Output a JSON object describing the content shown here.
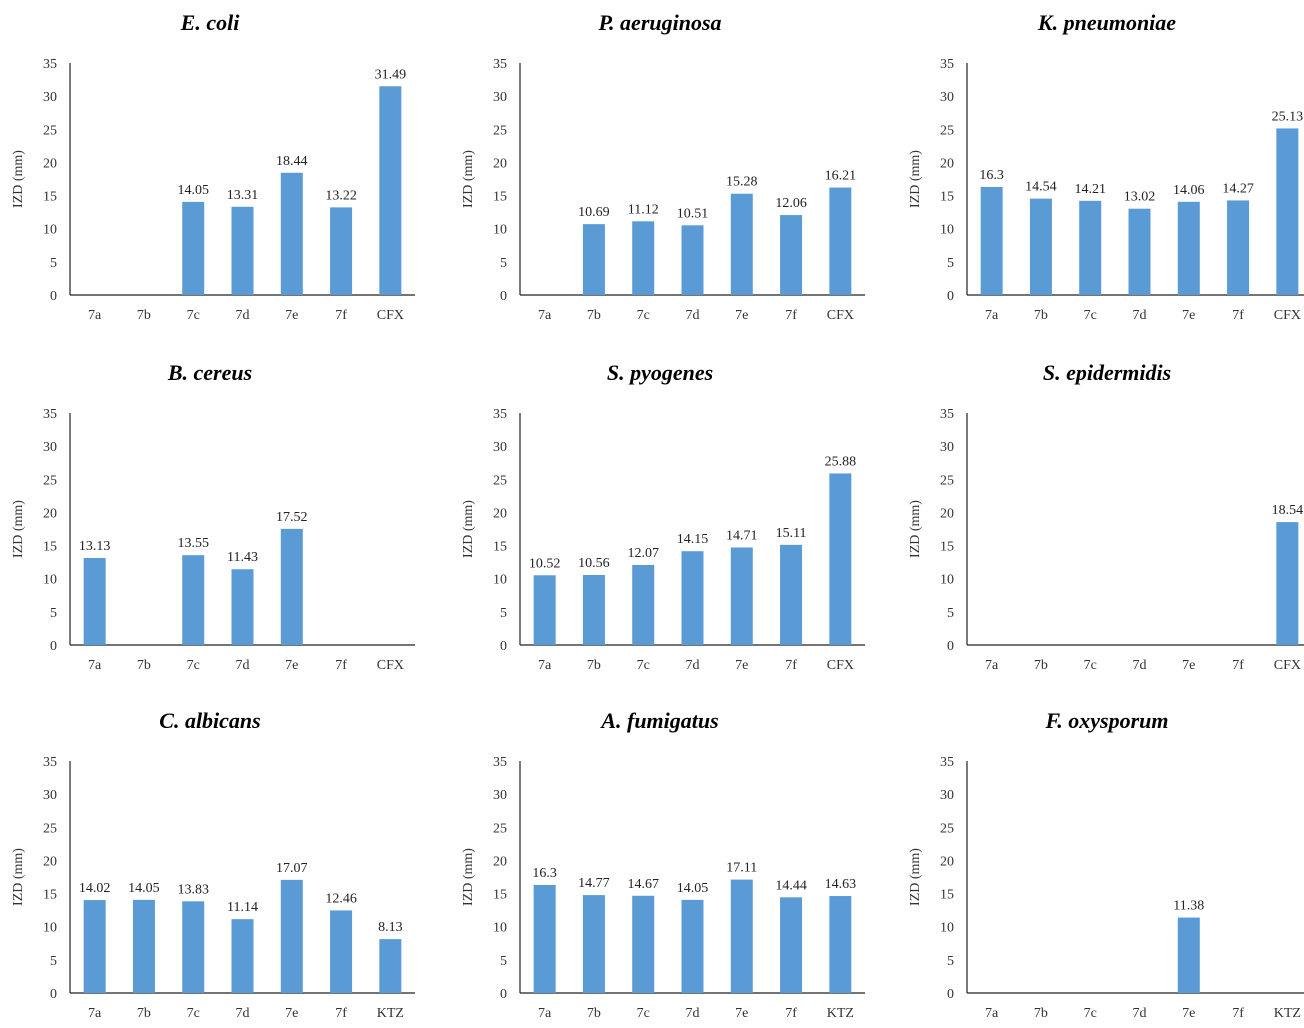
{
  "chart_data": [
    {
      "type": "bar",
      "title": "E. coli",
      "ylabel": "IZD (mm)",
      "ylim": [
        0,
        35
      ],
      "categories": [
        "7a",
        "7b",
        "7c",
        "7d",
        "7e",
        "7f",
        "CFX"
      ],
      "values": [
        null,
        null,
        14.05,
        13.31,
        18.44,
        13.22,
        31.49
      ],
      "labels": [
        "",
        "",
        "14.05",
        "13.31",
        "18.44",
        "13.22",
        "31.49"
      ]
    },
    {
      "type": "bar",
      "title": "P. aeruginosa",
      "ylabel": "IZD (mm)",
      "ylim": [
        0,
        35
      ],
      "categories": [
        "7a",
        "7b",
        "7c",
        "7d",
        "7e",
        "7f",
        "CFX"
      ],
      "values": [
        null,
        10.69,
        11.12,
        10.51,
        15.28,
        12.06,
        16.21
      ],
      "labels": [
        "",
        "10.69",
        "11.12",
        "10.51",
        "15.28",
        "12.06",
        "16.21"
      ]
    },
    {
      "type": "bar",
      "title": "K. pneumoniae",
      "ylabel": "IZD (mm)",
      "ylim": [
        0,
        35
      ],
      "categories": [
        "7a",
        "7b",
        "7c",
        "7d",
        "7e",
        "7f",
        "CFX"
      ],
      "values": [
        16.3,
        14.54,
        14.21,
        13.02,
        14.06,
        14.27,
        25.13
      ],
      "labels": [
        "16.3",
        "14.54",
        "14.21",
        "13.02",
        "14.06",
        "14.27",
        "25.13"
      ]
    },
    {
      "type": "bar",
      "title": "B. cereus",
      "ylabel": "IZD (mm)",
      "ylim": [
        0,
        35
      ],
      "categories": [
        "7a",
        "7b",
        "7c",
        "7d",
        "7e",
        "7f",
        "CFX"
      ],
      "values": [
        13.13,
        null,
        13.55,
        11.43,
        17.52,
        null,
        null
      ],
      "labels": [
        "13.13",
        "",
        "13.55",
        "11.43",
        "17.52",
        "",
        ""
      ]
    },
    {
      "type": "bar",
      "title": "S. pyogenes",
      "ylabel": "IZD (mm)",
      "ylim": [
        0,
        35
      ],
      "categories": [
        "7a",
        "7b",
        "7c",
        "7d",
        "7e",
        "7f",
        "CFX"
      ],
      "values": [
        10.52,
        10.56,
        12.07,
        14.15,
        14.71,
        15.11,
        25.88
      ],
      "labels": [
        "10.52",
        "10.56",
        "12.07",
        "14.15",
        "14.71",
        "15.11",
        "25.88"
      ]
    },
    {
      "type": "bar",
      "title": "S. epidermidis",
      "ylabel": "IZD (mm)",
      "ylim": [
        0,
        35
      ],
      "categories": [
        "7a",
        "7b",
        "7c",
        "7d",
        "7e",
        "7f",
        "CFX"
      ],
      "values": [
        null,
        null,
        null,
        null,
        null,
        null,
        18.54
      ],
      "labels": [
        "",
        "",
        "",
        "",
        "",
        "",
        "18.54"
      ]
    },
    {
      "type": "bar",
      "title": "C. albicans",
      "ylabel": "IZD (mm)",
      "ylim": [
        0,
        35
      ],
      "categories": [
        "7a",
        "7b",
        "7c",
        "7d",
        "7e",
        "7f",
        "KTZ"
      ],
      "values": [
        14.02,
        14.05,
        13.83,
        11.14,
        17.07,
        12.46,
        8.13
      ],
      "labels": [
        "14.02",
        "14.05",
        "13.83",
        "11.14",
        "17.07",
        "12.46",
        "8.13"
      ]
    },
    {
      "type": "bar",
      "title": "A. fumigatus",
      "ylabel": "IZD (mm)",
      "ylim": [
        0,
        35
      ],
      "categories": [
        "7a",
        "7b",
        "7c",
        "7d",
        "7e",
        "7f",
        "KTZ"
      ],
      "values": [
        16.3,
        14.77,
        14.67,
        14.05,
        17.11,
        14.44,
        14.63
      ],
      "labels": [
        "16.3",
        "14.77",
        "14.67",
        "14.05",
        "17.11",
        "14.44",
        "14.63"
      ]
    },
    {
      "type": "bar",
      "title": "F. oxysporum",
      "ylabel": "IZD (mm)",
      "ylim": [
        0,
        35
      ],
      "categories": [
        "7a",
        "7b",
        "7c",
        "7d",
        "7e",
        "7f",
        "KTZ"
      ],
      "values": [
        null,
        null,
        null,
        null,
        11.38,
        null,
        null
      ],
      "labels": [
        "",
        "",
        "",
        "",
        "11.38",
        "",
        ""
      ]
    }
  ]
}
